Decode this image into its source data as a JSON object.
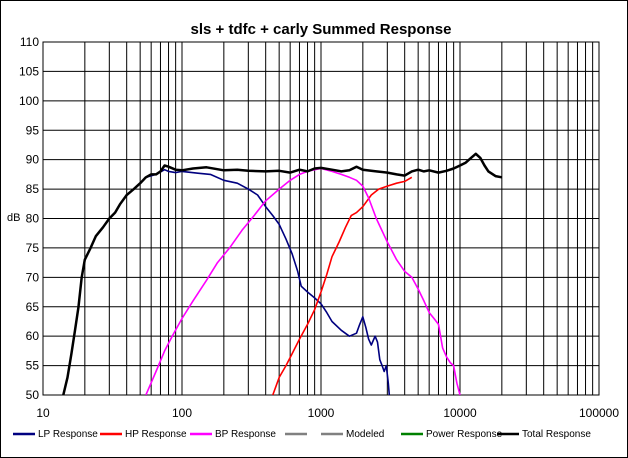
{
  "chart_data": {
    "type": "line",
    "title": "sls + tdfc + carly  Summed Response",
    "ylabel": "dB",
    "xlabel": "",
    "xscale": "log",
    "xlim": [
      10,
      100000
    ],
    "ylim": [
      50,
      110
    ],
    "x_ticks": [
      "10",
      "100",
      "1000",
      "10000",
      "100000"
    ],
    "y_ticks": [
      "50",
      "55",
      "60",
      "65",
      "70",
      "75",
      "80",
      "85",
      "90",
      "95",
      "100",
      "105",
      "110"
    ],
    "grid": true,
    "legend_position": "bottom",
    "series": [
      {
        "name": "LP Response",
        "color": "#000080",
        "points": [
          [
            50,
            86
          ],
          [
            55,
            87
          ],
          [
            65,
            87.5
          ],
          [
            75,
            88.3
          ],
          [
            80,
            88
          ],
          [
            90,
            87.8
          ],
          [
            100,
            88
          ],
          [
            130,
            87.7
          ],
          [
            160,
            87.5
          ],
          [
            200,
            86.5
          ],
          [
            250,
            86
          ],
          [
            300,
            85
          ],
          [
            350,
            84
          ],
          [
            400,
            82
          ],
          [
            450,
            80.5
          ],
          [
            500,
            79
          ],
          [
            560,
            76.5
          ],
          [
            620,
            74
          ],
          [
            680,
            71
          ],
          [
            720,
            68.5
          ],
          [
            800,
            67.5
          ],
          [
            900,
            66.5
          ],
          [
            1000,
            65.5
          ],
          [
            1100,
            64
          ],
          [
            1200,
            62.5
          ],
          [
            1400,
            61
          ],
          [
            1600,
            60
          ],
          [
            1800,
            60.5
          ],
          [
            1900,
            62
          ],
          [
            2000,
            63.3
          ],
          [
            2100,
            61.5
          ],
          [
            2200,
            59.5
          ],
          [
            2300,
            58.5
          ],
          [
            2450,
            60
          ],
          [
            2550,
            59
          ],
          [
            2650,
            56
          ],
          [
            2750,
            55
          ],
          [
            2850,
            54
          ],
          [
            2950,
            55
          ],
          [
            3050,
            52
          ],
          [
            3100,
            50
          ]
        ]
      },
      {
        "name": "HP Response",
        "color": "#ff0000",
        "points": [
          [
            450,
            50
          ],
          [
            500,
            53
          ],
          [
            560,
            55
          ],
          [
            620,
            57
          ],
          [
            700,
            59.5
          ],
          [
            800,
            62
          ],
          [
            900,
            64.5
          ],
          [
            1000,
            67.5
          ],
          [
            1100,
            70.5
          ],
          [
            1200,
            73.5
          ],
          [
            1350,
            76
          ],
          [
            1500,
            78.5
          ],
          [
            1650,
            80.5
          ],
          [
            1800,
            81
          ],
          [
            2000,
            82
          ],
          [
            2300,
            84
          ],
          [
            2600,
            85
          ],
          [
            3000,
            85.5
          ],
          [
            3500,
            86
          ],
          [
            4000,
            86.3
          ],
          [
            4500,
            87
          ]
        ]
      },
      {
        "name": "BP Response",
        "color": "#ff00ff",
        "points": [
          [
            55,
            50
          ],
          [
            65,
            54
          ],
          [
            75,
            57.5
          ],
          [
            85,
            60
          ],
          [
            100,
            63
          ],
          [
            120,
            66
          ],
          [
            150,
            69.5
          ],
          [
            180,
            72.5
          ],
          [
            220,
            75
          ],
          [
            270,
            78
          ],
          [
            330,
            80.5
          ],
          [
            400,
            83
          ],
          [
            500,
            85
          ],
          [
            600,
            86.5
          ],
          [
            700,
            87.5
          ],
          [
            800,
            88
          ],
          [
            900,
            88.3
          ],
          [
            1000,
            88.5
          ],
          [
            1200,
            88
          ],
          [
            1400,
            87.5
          ],
          [
            1600,
            87
          ],
          [
            1800,
            86.5
          ],
          [
            2000,
            85.5
          ],
          [
            2200,
            83.5
          ],
          [
            2500,
            80
          ],
          [
            3000,
            76
          ],
          [
            3500,
            73
          ],
          [
            4000,
            71
          ],
          [
            4500,
            70
          ],
          [
            5000,
            68
          ],
          [
            5500,
            66
          ],
          [
            6000,
            64
          ],
          [
            6500,
            63
          ],
          [
            7000,
            62
          ],
          [
            7500,
            58
          ],
          [
            8000,
            56.5
          ],
          [
            8500,
            55.5
          ],
          [
            9000,
            55
          ],
          [
            9500,
            52
          ],
          [
            10000,
            50
          ]
        ]
      },
      {
        "name": "",
        "color": "#808080",
        "points": []
      },
      {
        "name": "Modeled",
        "color": "#808080",
        "points": []
      },
      {
        "name": "Power Response",
        "color": "#008000",
        "points": []
      },
      {
        "name": "Total Response",
        "color": "#000000",
        "points": [
          [
            14,
            50
          ],
          [
            15,
            53
          ],
          [
            16,
            57
          ],
          [
            17,
            61
          ],
          [
            18,
            65
          ],
          [
            19,
            70
          ],
          [
            20,
            73
          ],
          [
            22,
            75
          ],
          [
            24,
            77
          ],
          [
            27,
            78.5
          ],
          [
            30,
            80
          ],
          [
            33,
            81
          ],
          [
            36,
            82.5
          ],
          [
            40,
            84
          ],
          [
            45,
            85
          ],
          [
            50,
            86
          ],
          [
            55,
            87
          ],
          [
            60,
            87.5
          ],
          [
            65,
            87.5
          ],
          [
            70,
            88
          ],
          [
            75,
            89
          ],
          [
            80,
            88.8
          ],
          [
            90,
            88.3
          ],
          [
            100,
            88.2
          ],
          [
            120,
            88.5
          ],
          [
            150,
            88.7
          ],
          [
            200,
            88.2
          ],
          [
            250,
            88.3
          ],
          [
            300,
            88.1
          ],
          [
            400,
            88
          ],
          [
            500,
            88.1
          ],
          [
            600,
            87.8
          ],
          [
            700,
            88.3
          ],
          [
            800,
            88
          ],
          [
            900,
            88.5
          ],
          [
            1000,
            88.6
          ],
          [
            1200,
            88.3
          ],
          [
            1400,
            88
          ],
          [
            1600,
            88.2
          ],
          [
            1800,
            88.8
          ],
          [
            2000,
            88.3
          ],
          [
            2500,
            88
          ],
          [
            3000,
            87.8
          ],
          [
            3500,
            87.5
          ],
          [
            4000,
            87.3
          ],
          [
            4500,
            88
          ],
          [
            5000,
            88.3
          ],
          [
            5500,
            88
          ],
          [
            6000,
            88.2
          ],
          [
            7000,
            87.8
          ],
          [
            8000,
            88.1
          ],
          [
            9000,
            88.5
          ],
          [
            10000,
            89
          ],
          [
            11000,
            89.5
          ],
          [
            12000,
            90.3
          ],
          [
            13000,
            91
          ],
          [
            14000,
            90.3
          ],
          [
            15000,
            89
          ],
          [
            16000,
            88
          ],
          [
            18000,
            87.2
          ],
          [
            20000,
            87
          ]
        ]
      }
    ]
  }
}
